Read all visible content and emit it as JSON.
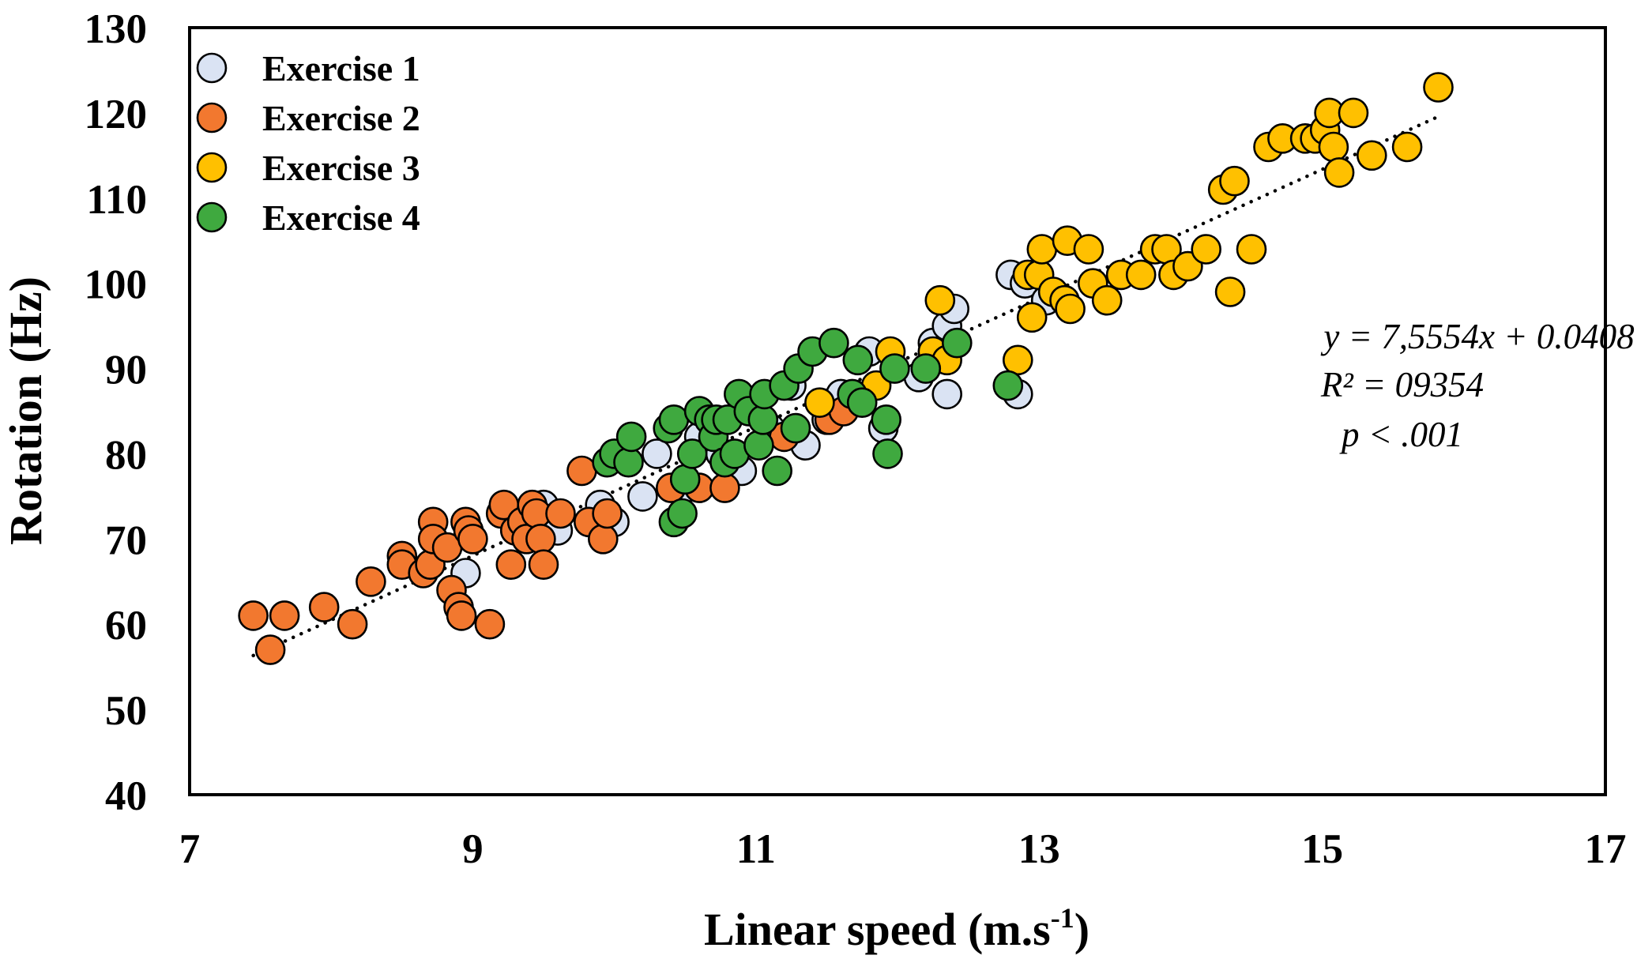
{
  "chart_data": {
    "type": "scatter",
    "title": "",
    "xlabel": "Linear speed (m.s",
    "xlabel_superscript": "-1",
    "xlabel_suffix": ")",
    "ylabel": "Rotation (Hz)",
    "xlim": [
      7,
      17
    ],
    "ylim": [
      40,
      130
    ],
    "xticks": [
      "7",
      "9",
      "11",
      "13",
      "15",
      "17"
    ],
    "yticks": [
      "40",
      "50",
      "60",
      "70",
      "80",
      "90",
      "100",
      "110",
      "120",
      "130"
    ],
    "grid": false,
    "legend_position": "top-left",
    "series": [
      {
        "name": "Exercise 1",
        "color": "#dae3f3",
        "points": [
          [
            8.95,
            66
          ],
          [
            9.5,
            74
          ],
          [
            9.6,
            71
          ],
          [
            9.9,
            74
          ],
          [
            10.0,
            72
          ],
          [
            10.2,
            75
          ],
          [
            10.3,
            80
          ],
          [
            10.5,
            76
          ],
          [
            10.6,
            82
          ],
          [
            10.75,
            80
          ],
          [
            10.9,
            78
          ],
          [
            11.0,
            85
          ],
          [
            11.1,
            83
          ],
          [
            11.25,
            88
          ],
          [
            11.35,
            81
          ],
          [
            11.5,
            84
          ],
          [
            11.6,
            87
          ],
          [
            11.8,
            92
          ],
          [
            11.9,
            83
          ],
          [
            12.15,
            89
          ],
          [
            12.25,
            93
          ],
          [
            12.35,
            95
          ],
          [
            12.4,
            97
          ],
          [
            12.35,
            87
          ],
          [
            12.8,
            101
          ],
          [
            12.85,
            87
          ],
          [
            12.9,
            100
          ],
          [
            13.05,
            98
          ]
        ]
      },
      {
        "name": "Exercise 2",
        "color": "#f2782f",
        "points": [
          [
            7.45,
            61
          ],
          [
            7.57,
            57
          ],
          [
            7.67,
            61
          ],
          [
            7.95,
            62
          ],
          [
            8.15,
            60
          ],
          [
            8.28,
            65
          ],
          [
            8.5,
            68
          ],
          [
            8.5,
            67
          ],
          [
            8.65,
            66
          ],
          [
            8.7,
            67
          ],
          [
            8.72,
            72
          ],
          [
            8.72,
            70
          ],
          [
            8.82,
            69
          ],
          [
            8.85,
            64
          ],
          [
            8.9,
            62
          ],
          [
            8.92,
            61
          ],
          [
            8.95,
            72
          ],
          [
            8.97,
            71
          ],
          [
            9.0,
            70
          ],
          [
            9.12,
            60
          ],
          [
            9.2,
            73
          ],
          [
            9.22,
            74
          ],
          [
            9.27,
            67
          ],
          [
            9.3,
            71
          ],
          [
            9.35,
            72
          ],
          [
            9.38,
            70
          ],
          [
            9.42,
            74
          ],
          [
            9.45,
            73
          ],
          [
            9.48,
            70
          ],
          [
            9.5,
            67
          ],
          [
            9.62,
            73
          ],
          [
            9.77,
            78
          ],
          [
            9.82,
            72
          ],
          [
            9.92,
            70
          ],
          [
            9.95,
            73
          ],
          [
            10.4,
            76
          ],
          [
            10.6,
            76
          ],
          [
            10.78,
            76
          ],
          [
            11.2,
            82
          ],
          [
            11.52,
            84
          ],
          [
            11.62,
            85
          ]
        ]
      },
      {
        "name": "Exercise 3",
        "color": "#ffc000",
        "points": [
          [
            11.45,
            86
          ],
          [
            11.85,
            88
          ],
          [
            11.95,
            92
          ],
          [
            12.3,
            98
          ],
          [
            12.25,
            92
          ],
          [
            12.35,
            91
          ],
          [
            12.85,
            91
          ],
          [
            12.95,
            96
          ],
          [
            12.92,
            101
          ],
          [
            13.0,
            101
          ],
          [
            13.02,
            104
          ],
          [
            13.1,
            99
          ],
          [
            13.18,
            98
          ],
          [
            13.2,
            105
          ],
          [
            13.22,
            97
          ],
          [
            13.35,
            104
          ],
          [
            13.38,
            100
          ],
          [
            13.48,
            98
          ],
          [
            13.58,
            101
          ],
          [
            13.72,
            101
          ],
          [
            13.82,
            104
          ],
          [
            13.9,
            104
          ],
          [
            13.95,
            101
          ],
          [
            14.05,
            102
          ],
          [
            14.18,
            104
          ],
          [
            14.3,
            111
          ],
          [
            14.35,
            99
          ],
          [
            14.38,
            112
          ],
          [
            14.5,
            104
          ],
          [
            14.62,
            116
          ],
          [
            14.72,
            117
          ],
          [
            14.88,
            117
          ],
          [
            14.95,
            117
          ],
          [
            15.02,
            118
          ],
          [
            15.05,
            120
          ],
          [
            15.08,
            116
          ],
          [
            15.12,
            113
          ],
          [
            15.22,
            120
          ],
          [
            15.35,
            115
          ],
          [
            15.6,
            116
          ],
          [
            15.82,
            123
          ]
        ]
      },
      {
        "name": "Exercise 4",
        "color": "#3fa93f",
        "points": [
          [
            9.95,
            79
          ],
          [
            10.0,
            80
          ],
          [
            10.1,
            79
          ],
          [
            10.12,
            82
          ],
          [
            10.38,
            83
          ],
          [
            10.42,
            84
          ],
          [
            10.42,
            72
          ],
          [
            10.48,
            73
          ],
          [
            10.5,
            77
          ],
          [
            10.55,
            80
          ],
          [
            10.6,
            85
          ],
          [
            10.67,
            84
          ],
          [
            10.7,
            82
          ],
          [
            10.72,
            84
          ],
          [
            10.78,
            79
          ],
          [
            10.8,
            84
          ],
          [
            10.85,
            80
          ],
          [
            10.88,
            87
          ],
          [
            10.95,
            85
          ],
          [
            11.02,
            81
          ],
          [
            11.05,
            84
          ],
          [
            11.06,
            87
          ],
          [
            11.15,
            78
          ],
          [
            11.2,
            88
          ],
          [
            11.28,
            83
          ],
          [
            11.3,
            90
          ],
          [
            11.4,
            92
          ],
          [
            11.55,
            93
          ],
          [
            11.68,
            87
          ],
          [
            11.72,
            91
          ],
          [
            11.75,
            86
          ],
          [
            11.92,
            84
          ],
          [
            11.93,
            80
          ],
          [
            11.98,
            90
          ],
          [
            12.2,
            90
          ],
          [
            12.42,
            93
          ],
          [
            12.78,
            88
          ]
        ]
      }
    ],
    "trendline": {
      "slope": 7.5554,
      "intercept": 0.0408,
      "x_range": [
        7.45,
        15.82
      ],
      "style": "dotted"
    },
    "annotations": [
      "y = 7,5554x + 0.0408",
      "R² = 09354",
      "p < .001"
    ]
  }
}
